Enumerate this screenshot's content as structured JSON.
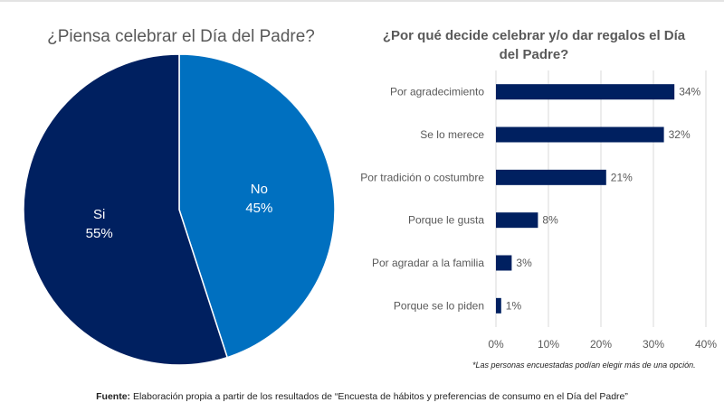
{
  "chart_data": [
    {
      "type": "pie",
      "title": "¿Piensa celebrar el Día del Padre?",
      "slices": [
        {
          "label": "No",
          "value": 45,
          "value_label": "45%",
          "color": "#0070C0"
        },
        {
          "label": "Si",
          "value": 55,
          "value_label": "55%",
          "color": "#002060"
        }
      ]
    },
    {
      "type": "bar",
      "orientation": "horizontal",
      "title": "¿Por qué decide celebrar y/o dar regalos el Día del Padre?",
      "categories": [
        "Por agradecimiento",
        "Se lo merece",
        "Por tradición o costumbre",
        "Porque le gusta",
        "Por agradar a la familia",
        "Porque se lo piden"
      ],
      "values": [
        34,
        32,
        21,
        8,
        3,
        1
      ],
      "value_labels": [
        "34%",
        "32%",
        "21%",
        "8%",
        "3%",
        "1%"
      ],
      "xlim": [
        0,
        40
      ],
      "xticks": [
        0,
        10,
        20,
        30,
        40
      ],
      "xtick_labels": [
        "0%",
        "10%",
        "20%",
        "30%",
        "40%"
      ],
      "grid": true,
      "bar_color": "#002060",
      "xlabel": "",
      "ylabel": ""
    }
  ],
  "note": "*Las personas encuestadas podían elegir más de una opción.",
  "source": {
    "label": "Fuente:",
    "text": " Elaboración propia  a partir de los resultados de “Encuesta de hábitos y preferencias de consumo en el Día del Padre”"
  }
}
